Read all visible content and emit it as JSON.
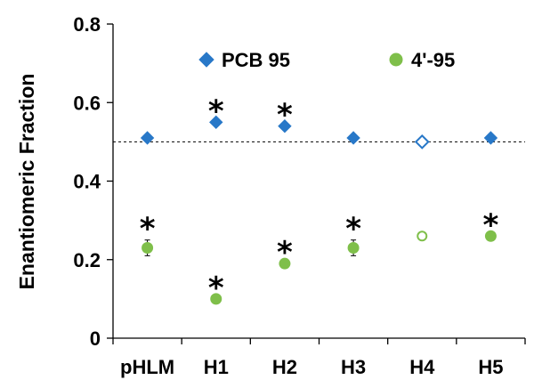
{
  "chart_data": {
    "type": "scatter",
    "title": "",
    "xlabel": "",
    "ylabel": "Enantiomeric Fraction",
    "ylim": [
      0,
      0.8
    ],
    "yticks": [
      "0",
      "0.2",
      "0.4",
      "0.6",
      "0.8"
    ],
    "yticks_values": [
      0,
      0.2,
      0.4,
      0.6,
      0.8
    ],
    "categories": [
      "pHLM",
      "H1",
      "H2",
      "H3",
      "H4",
      "H5"
    ],
    "reference_line": {
      "y": 0.5,
      "style": "dashed"
    },
    "legend_position": "top",
    "series": [
      {
        "name": "PCB 95",
        "marker": "diamond",
        "color": "#2878c8",
        "values": [
          0.51,
          0.55,
          0.54,
          0.51,
          0.5,
          0.51
        ],
        "errors": [
          0,
          0,
          0,
          0,
          0,
          0
        ],
        "hollow": [
          false,
          false,
          false,
          false,
          true,
          false
        ],
        "significant": [
          false,
          true,
          true,
          false,
          false,
          false
        ]
      },
      {
        "name": "4'-95",
        "marker": "circle",
        "color": "#7fbf4a",
        "values": [
          0.23,
          0.1,
          0.19,
          0.23,
          0.26,
          0.26
        ],
        "errors": [
          0.02,
          0,
          0,
          0.02,
          0,
          0
        ],
        "hollow": [
          false,
          false,
          false,
          false,
          true,
          false
        ],
        "significant": [
          true,
          true,
          true,
          true,
          false,
          true
        ]
      }
    ],
    "significance_marker": "*"
  }
}
